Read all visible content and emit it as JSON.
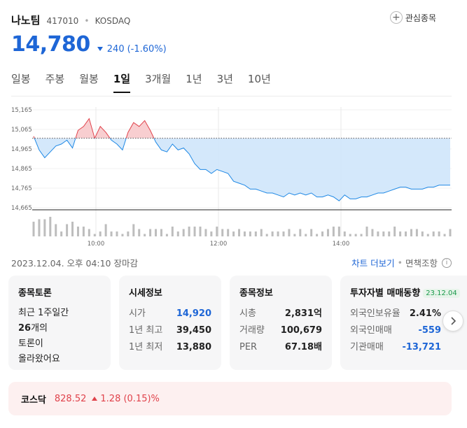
{
  "stock": {
    "name": "나노팀",
    "code": "417010",
    "market": "KOSDAQ",
    "price": "14,780",
    "change": "240",
    "change_pct": "(-1.60%)",
    "direction": "down"
  },
  "watchlist_label": "관심종목",
  "tabs": [
    {
      "label": "일봉",
      "active": false
    },
    {
      "label": "주봉",
      "active": false
    },
    {
      "label": "월봉",
      "active": false
    },
    {
      "label": "1일",
      "active": true
    },
    {
      "label": "3개월",
      "active": false
    },
    {
      "label": "1년",
      "active": false
    },
    {
      "label": "3년",
      "active": false
    },
    {
      "label": "10년",
      "active": false
    }
  ],
  "chart_data": {
    "type": "line",
    "y_ticks": [
      "15,165",
      "15,065",
      "14,965",
      "14,865",
      "14,765",
      "14,665"
    ],
    "x_ticks": [
      "10:00",
      "12:00",
      "14:00"
    ],
    "ylim": [
      14665,
      15165
    ],
    "prev_close": 15020,
    "series": [
      {
        "values": [
          15030,
          14960,
          14920,
          14950,
          14980,
          14990,
          15010,
          14970,
          15060,
          15080,
          15120,
          15020,
          15080,
          15050,
          15010,
          14990,
          14960,
          15050,
          15100,
          15080,
          15110,
          15060,
          15000,
          14960,
          14950,
          14990,
          14960,
          14970,
          14940,
          14890,
          14860,
          14860,
          14840,
          14860,
          14850,
          14840,
          14800,
          14790,
          14780,
          14760,
          14760,
          14750,
          14740,
          14740,
          14730,
          14720,
          14740,
          14730,
          14740,
          14730,
          14740,
          14720,
          14720,
          14730,
          14720,
          14700,
          14730,
          14710,
          14710,
          14720,
          14720,
          14730,
          14740,
          14740,
          14750,
          14760,
          14770,
          14770,
          14760,
          14760,
          14760,
          14770,
          14770,
          14780,
          14780,
          14780
        ]
      }
    ],
    "volume": [
      6,
      7,
      7,
      8,
      5,
      2,
      5,
      6,
      4,
      4,
      3,
      1,
      2,
      5,
      2,
      2,
      1,
      2,
      5,
      3,
      1,
      3,
      3,
      3,
      1,
      4,
      2,
      3,
      4,
      4,
      4,
      3,
      2,
      4,
      3,
      3,
      2,
      3,
      2,
      2,
      2,
      3,
      1,
      2,
      2,
      2,
      3,
      1,
      3,
      1,
      3,
      1,
      2,
      3,
      4,
      4,
      2,
      1,
      1,
      1,
      4,
      3,
      2,
      2,
      2,
      4,
      2,
      2,
      3,
      3,
      2,
      1,
      2,
      2,
      1,
      3
    ],
    "colors": {
      "above": "#e0424b",
      "below": "#1e88e5",
      "fill_below": "#cfe6fb",
      "fill_above": "#f7c9cb"
    }
  },
  "meta": {
    "datetime": "2023.12.04. 오후 04:10 장마감",
    "chart_more": "차트 더보기",
    "disclaimer": "면책조항",
    "info_icon": "i"
  },
  "cards": {
    "discussion": {
      "title": "종목토론",
      "line1": "최근 1주일간",
      "count": "26",
      "line2_suffix": "개의",
      "line3": "토론이",
      "line4": "올라왔어요"
    },
    "market_info": {
      "title": "시세정보",
      "rows": [
        {
          "k": "시가",
          "v": "14,920"
        },
        {
          "k": "1년 최고",
          "v": "39,450"
        },
        {
          "k": "1년 최저",
          "v": "13,880"
        }
      ]
    },
    "stock_info": {
      "title": "종목정보",
      "rows": [
        {
          "k": "시총",
          "v": "2,831억"
        },
        {
          "k": "거래량",
          "v": "100,679"
        },
        {
          "k": "PER",
          "v": "67.18배"
        }
      ]
    },
    "investor": {
      "title": "투자자별 매매동향",
      "date": "23.12.04",
      "rows": [
        {
          "k": "외국인보유율",
          "v": "2.41%"
        },
        {
          "k": "외국인매매",
          "v": "-559"
        },
        {
          "k": "기관매매",
          "v": "-13,721"
        }
      ]
    }
  },
  "index_bar": {
    "name": "코스닥",
    "value": "828.52",
    "change": "1.28 (0.15)%"
  }
}
